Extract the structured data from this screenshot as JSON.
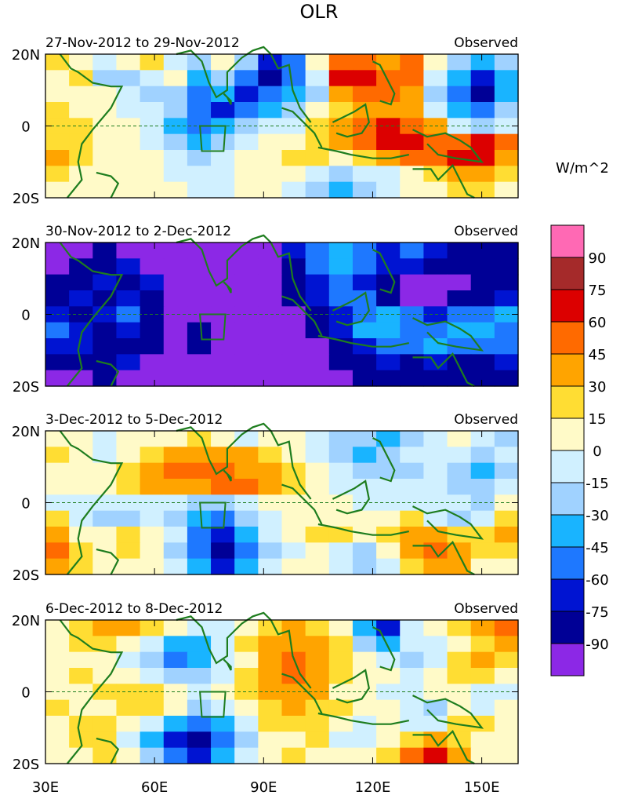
{
  "figure": {
    "title": "OLR",
    "units_label": "W/m^2"
  },
  "chart_data": {
    "type": "heatmap",
    "variable": "OLR",
    "x_ticks": [
      "30E",
      "60E",
      "90E",
      "120E",
      "150E"
    ],
    "x_tick_values": [
      30,
      60,
      90,
      120,
      150
    ],
    "xlim": [
      30,
      160
    ],
    "ylim": [
      -20,
      20
    ],
    "y_ticks": [
      "20N",
      "0",
      "20S"
    ],
    "y_tick_values": [
      20,
      0,
      -20
    ],
    "colorbar": {
      "label": "W/m^2",
      "levels": [
        "90",
        "75",
        "60",
        "45",
        "30",
        "15",
        "0",
        "-15",
        "-30",
        "-45",
        "-60",
        "-75",
        "-90"
      ],
      "colors_top_to_bottom": [
        "#ff69b4",
        "#a52a2a",
        "#dc0000",
        "#ff6a00",
        "#ffa400",
        "#ffdd33",
        "#fffac8",
        "#d0f0ff",
        "#a0d2ff",
        "#19b4ff",
        "#1e78ff",
        "#0014d2",
        "#000096",
        "#8c28e6"
      ]
    },
    "panels": [
      {
        "period": "27-Nov-2012 to 29-Nov-2012",
        "label": "Observed",
        "grid": [
          [
            1,
            0,
            -1,
            0,
            1,
            -1,
            -2,
            0,
            -2,
            -5,
            -4,
            0,
            3,
            3,
            2,
            3,
            0,
            -2,
            -3,
            -2
          ],
          [
            0,
            1,
            -2,
            -2,
            -1,
            0,
            -3,
            -2,
            -4,
            -6,
            -4,
            -1,
            4,
            4,
            3,
            3,
            -1,
            -3,
            -5,
            -3
          ],
          [
            0,
            0,
            0,
            -1,
            -2,
            -2,
            -4,
            -3,
            -5,
            -4,
            -3,
            -2,
            2,
            3,
            3,
            2,
            -2,
            -4,
            -6,
            -3
          ],
          [
            1,
            0,
            0,
            -1,
            -1,
            -2,
            -4,
            -5,
            -4,
            -3,
            -2,
            0,
            1,
            2,
            2,
            2,
            -1,
            -3,
            -4,
            -2
          ],
          [
            1,
            1,
            0,
            0,
            -1,
            -3,
            -4,
            -3,
            -2,
            -1,
            -1,
            1,
            2,
            3,
            4,
            3,
            2,
            -1,
            -2,
            -1
          ],
          [
            1,
            1,
            0,
            0,
            -1,
            -2,
            -3,
            -2,
            -1,
            0,
            0,
            1,
            2,
            3,
            4,
            4,
            3,
            3,
            4,
            3
          ],
          [
            2,
            1,
            0,
            0,
            0,
            -1,
            -2,
            -1,
            0,
            0,
            1,
            1,
            0,
            1,
            2,
            3,
            3,
            4,
            4,
            2
          ],
          [
            1,
            0,
            0,
            0,
            0,
            -1,
            -1,
            -1,
            0,
            0,
            0,
            -1,
            -2,
            -1,
            -1,
            0,
            1,
            2,
            2,
            1
          ],
          [
            0,
            0,
            0,
            0,
            0,
            0,
            -1,
            -1,
            0,
            0,
            -1,
            -2,
            -3,
            -2,
            -1,
            0,
            0,
            1,
            1,
            0
          ]
        ]
      },
      {
        "period": "30-Nov-2012 to 2-Dec-2012",
        "label": "Observed",
        "grid": [
          [
            -7,
            -7,
            -6,
            -7,
            -7,
            -7,
            -7,
            -7,
            -7,
            -7,
            -5,
            -4,
            -3,
            -4,
            -5,
            -4,
            -5,
            -6,
            -6,
            -6
          ],
          [
            -7,
            -6,
            -6,
            -5,
            -7,
            -7,
            -7,
            -7,
            -7,
            -7,
            -6,
            -4,
            -3,
            -4,
            -5,
            -5,
            -6,
            -6,
            -6,
            -6
          ],
          [
            -6,
            -6,
            -5,
            -6,
            -5,
            -7,
            -7,
            -7,
            -7,
            -7,
            -6,
            -5,
            -4,
            -5,
            -6,
            -7,
            -7,
            -7,
            -6,
            -6
          ],
          [
            -6,
            -5,
            -6,
            -5,
            -6,
            -7,
            -7,
            -7,
            -7,
            -7,
            -6,
            -5,
            -4,
            -4,
            -6,
            -7,
            -7,
            -6,
            -6,
            -5
          ],
          [
            -5,
            -6,
            -5,
            -4,
            -6,
            -7,
            -7,
            -7,
            -7,
            -7,
            -7,
            -6,
            -5,
            -4,
            -3,
            -4,
            -5,
            -4,
            -4,
            -3
          ],
          [
            -4,
            -5,
            -6,
            -5,
            -6,
            -7,
            -6,
            -7,
            -7,
            -7,
            -7,
            -6,
            -5,
            -3,
            -3,
            -4,
            -4,
            -3,
            -3,
            -4
          ],
          [
            -5,
            -5,
            -6,
            -6,
            -6,
            -7,
            -6,
            -7,
            -7,
            -7,
            -7,
            -7,
            -6,
            -5,
            -4,
            -4,
            -3,
            -4,
            -4,
            -4
          ],
          [
            -6,
            -6,
            -6,
            -5,
            -7,
            -7,
            -7,
            -7,
            -7,
            -7,
            -7,
            -7,
            -6,
            -6,
            -5,
            -6,
            -5,
            -6,
            -6,
            -5
          ],
          [
            -7,
            -7,
            -6,
            -7,
            -7,
            -7,
            -7,
            -7,
            -7,
            -7,
            -7,
            -7,
            -7,
            -6,
            -6,
            -6,
            -6,
            -6,
            -6,
            -6
          ]
        ]
      },
      {
        "period": "3-Dec-2012 to 5-Dec-2012",
        "label": "Observed",
        "grid": [
          [
            0,
            0,
            -1,
            0,
            0,
            0,
            1,
            0,
            -1,
            0,
            0,
            -1,
            -2,
            -2,
            -3,
            -2,
            -1,
            0,
            -1,
            -2
          ],
          [
            1,
            0,
            -1,
            0,
            1,
            2,
            2,
            2,
            2,
            1,
            0,
            -1,
            -2,
            -3,
            -2,
            -1,
            -1,
            -1,
            -2,
            -1
          ],
          [
            0,
            0,
            0,
            1,
            2,
            3,
            3,
            3,
            2,
            2,
            1,
            0,
            -1,
            -2,
            -2,
            -2,
            -1,
            -2,
            -3,
            -2
          ],
          [
            0,
            0,
            0,
            1,
            2,
            2,
            2,
            3,
            3,
            2,
            1,
            0,
            -1,
            -1,
            -1,
            -1,
            -1,
            -2,
            -2,
            -1
          ],
          [
            -1,
            -1,
            -1,
            -1,
            -1,
            -1,
            -2,
            -2,
            -1,
            0,
            0,
            0,
            0,
            -1,
            -1,
            -1,
            -1,
            -1,
            -2,
            0
          ],
          [
            1,
            -1,
            -2,
            -2,
            -1,
            -2,
            -3,
            -4,
            -2,
            -1,
            0,
            0,
            0,
            0,
            0,
            1,
            -1,
            -2,
            -1,
            1
          ],
          [
            2,
            0,
            0,
            1,
            0,
            -1,
            -4,
            -5,
            -3,
            -1,
            0,
            1,
            1,
            0,
            1,
            2,
            2,
            1,
            1,
            2
          ],
          [
            3,
            1,
            0,
            1,
            0,
            -2,
            -4,
            -6,
            -4,
            -2,
            -1,
            0,
            -1,
            -2,
            0,
            2,
            3,
            2,
            1,
            1
          ],
          [
            2,
            1,
            0,
            0,
            0,
            -1,
            -3,
            -5,
            -3,
            -1,
            0,
            0,
            -1,
            -2,
            -1,
            1,
            2,
            2,
            0,
            0
          ]
        ]
      },
      {
        "period": "6-Dec-2012 to 8-Dec-2012",
        "label": "Observed",
        "grid": [
          [
            0,
            1,
            2,
            2,
            1,
            0,
            -1,
            -1,
            0,
            1,
            2,
            1,
            0,
            -3,
            -5,
            -1,
            0,
            1,
            2,
            3
          ],
          [
            0,
            1,
            1,
            0,
            -1,
            -3,
            -3,
            -1,
            1,
            2,
            2,
            2,
            1,
            -2,
            -3,
            -1,
            -1,
            0,
            1,
            2
          ],
          [
            0,
            0,
            0,
            -1,
            -2,
            -4,
            -3,
            -1,
            0,
            2,
            3,
            2,
            1,
            0,
            -1,
            -2,
            -1,
            1,
            2,
            1
          ],
          [
            0,
            1,
            0,
            0,
            -1,
            -2,
            -2,
            -1,
            1,
            2,
            3,
            2,
            1,
            0,
            0,
            -1,
            0,
            1,
            1,
            0
          ],
          [
            0,
            0,
            1,
            1,
            1,
            0,
            -1,
            0,
            1,
            2,
            2,
            2,
            0,
            0,
            -1,
            -1,
            0,
            0,
            -1,
            -1
          ],
          [
            1,
            0,
            0,
            1,
            1,
            0,
            -2,
            -1,
            0,
            1,
            2,
            1,
            1,
            0,
            0,
            -1,
            -2,
            0,
            -1,
            0
          ],
          [
            0,
            1,
            1,
            0,
            -1,
            -3,
            -4,
            -3,
            -1,
            1,
            1,
            1,
            0,
            -1,
            0,
            -1,
            -1,
            1,
            1,
            0
          ],
          [
            0,
            1,
            1,
            -1,
            -3,
            -5,
            -6,
            -4,
            -2,
            0,
            0,
            1,
            -1,
            -1,
            0,
            1,
            2,
            1,
            0,
            0
          ],
          [
            0,
            0,
            1,
            0,
            -2,
            -4,
            -5,
            -3,
            -1,
            0,
            1,
            0,
            0,
            0,
            1,
            3,
            4,
            2,
            0,
            0
          ]
        ]
      }
    ]
  }
}
